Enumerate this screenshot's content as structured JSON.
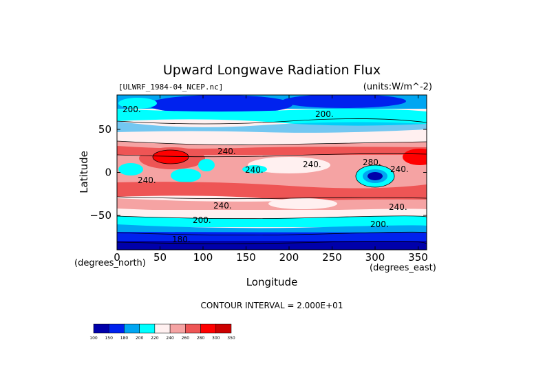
{
  "chart_data": {
    "type": "heatmap",
    "title": "Upward Longwave Radiation Flux",
    "source_label": "[ULWRF_1984-04_NCEP.nc]",
    "units_label": "(units:W/m^-2)",
    "xlabel": "Longitude",
    "ylabel": "Latitude",
    "x_unit_label": "(degrees_east)",
    "y_unit_label": "(degrees_north)",
    "xlim": [
      0,
      360
    ],
    "ylim": [
      -90,
      90
    ],
    "x_ticks": [
      0,
      50,
      100,
      150,
      200,
      250,
      300,
      350
    ],
    "y_ticks": [
      50,
      0,
      -50
    ],
    "y_tick_labels": [
      "50",
      "0",
      "−50"
    ],
    "contour_interval_label": "CONTOUR INTERVAL = 2.000E+01",
    "contour_labels": [
      "200.",
      "200.",
      "240.",
      "240.",
      "240.",
      "240.",
      "280.",
      "240.",
      "240.",
      "240.",
      "200.",
      "200.",
      "180."
    ],
    "colorbar": {
      "levels": [
        100,
        150,
        180,
        200,
        220,
        240,
        260,
        280,
        300,
        350
      ],
      "level_labels": [
        "100",
        "150",
        "180",
        "200",
        "220",
        "240",
        "260",
        "280",
        "300",
        "350"
      ],
      "colors": [
        "#0000aa",
        "#0022ee",
        "#00a6f2",
        "#00ffff",
        "#fff0f0",
        "#f5a3a3",
        "#ee5555",
        "#ff0000",
        "#cc0000"
      ]
    }
  }
}
